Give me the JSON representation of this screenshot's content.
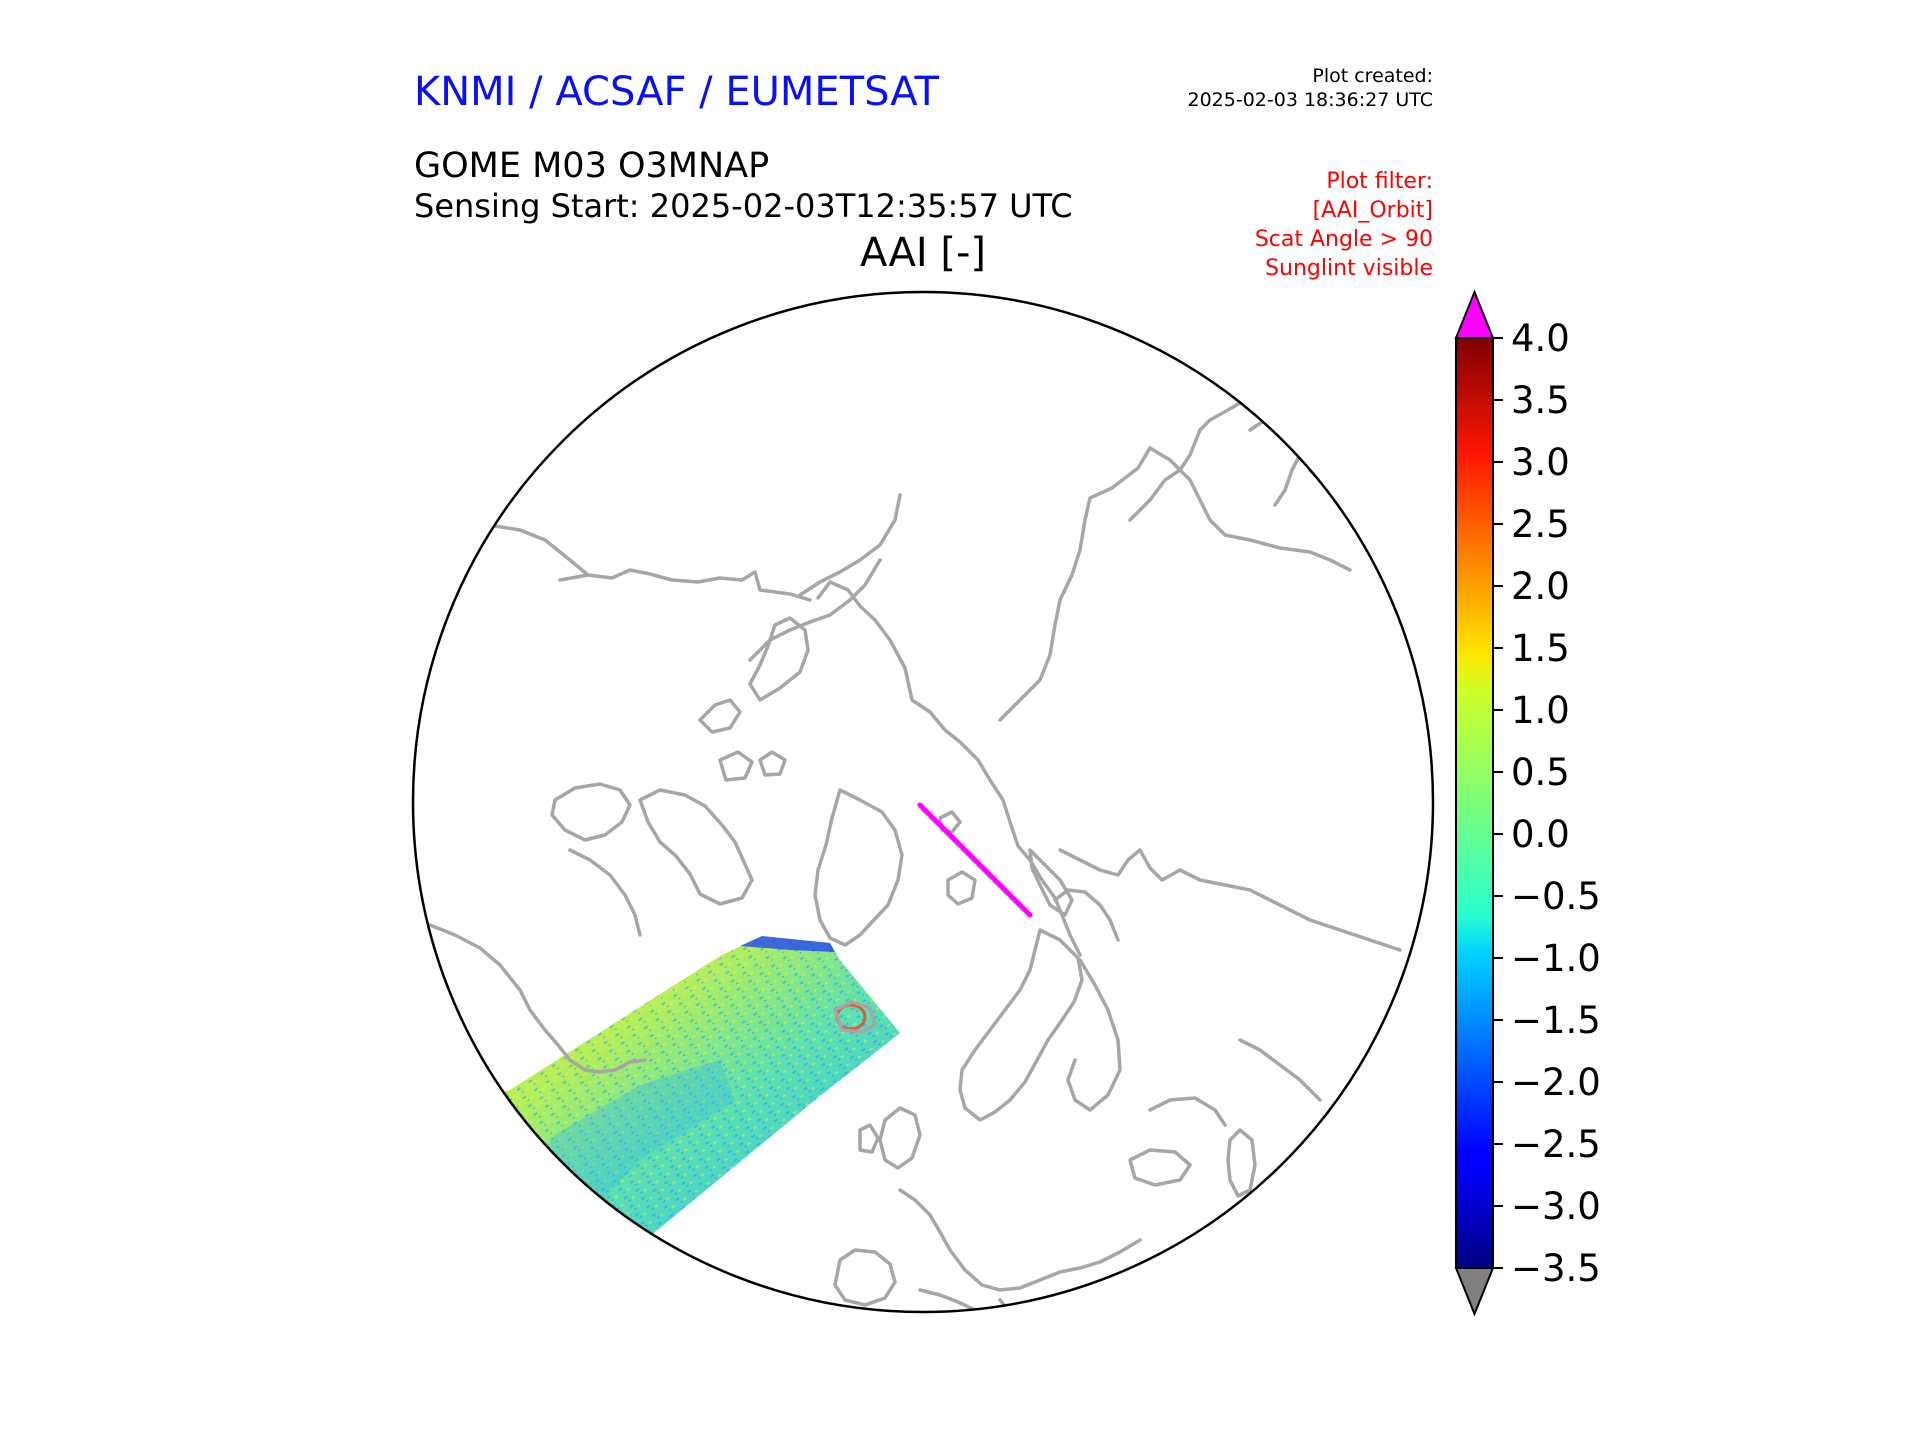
{
  "header": {
    "organisation": "KNMI / ACSAF / EUMETSAT",
    "organisation_color": "#0a10f5",
    "plot_created_label": "Plot created:",
    "plot_created_time": "2025-02-03 18:36:27 UTC",
    "product": "GOME M03 O3MNAP",
    "sensing_start": "Sensing Start: 2025-02-03T12:35:57 UTC",
    "map_title": "AAI [-]"
  },
  "plot_filter": {
    "color": "#ff0000",
    "lines": [
      "Plot filter:",
      "[AAI_Orbit]",
      "Scat Angle > 90",
      "Sunglint visible"
    ]
  },
  "map": {
    "projection": "north-polar-stereographic",
    "coastline_color": "#a6a6a6",
    "boundary_color": "#000000",
    "overflow_marker_color": "#ff00ff"
  },
  "colorbar": {
    "min": -3.5,
    "max": 4.0,
    "tick_values": [
      4.0,
      3.5,
      3.0,
      2.5,
      2.0,
      1.5,
      1.0,
      0.5,
      0.0,
      -0.5,
      -1.0,
      -1.5,
      -2.0,
      -2.5,
      -3.0,
      -3.5
    ],
    "tick_labels": [
      "4.0",
      "3.5",
      "3.0",
      "2.5",
      "2.0",
      "1.5",
      "1.0",
      "0.5",
      "0.0",
      "−0.5",
      "−1.0",
      "−1.5",
      "−2.0",
      "−2.5",
      "−3.0",
      "−3.5"
    ],
    "colormap": "jet",
    "over_color": "#ff00ff",
    "under_color": "#808080"
  }
}
